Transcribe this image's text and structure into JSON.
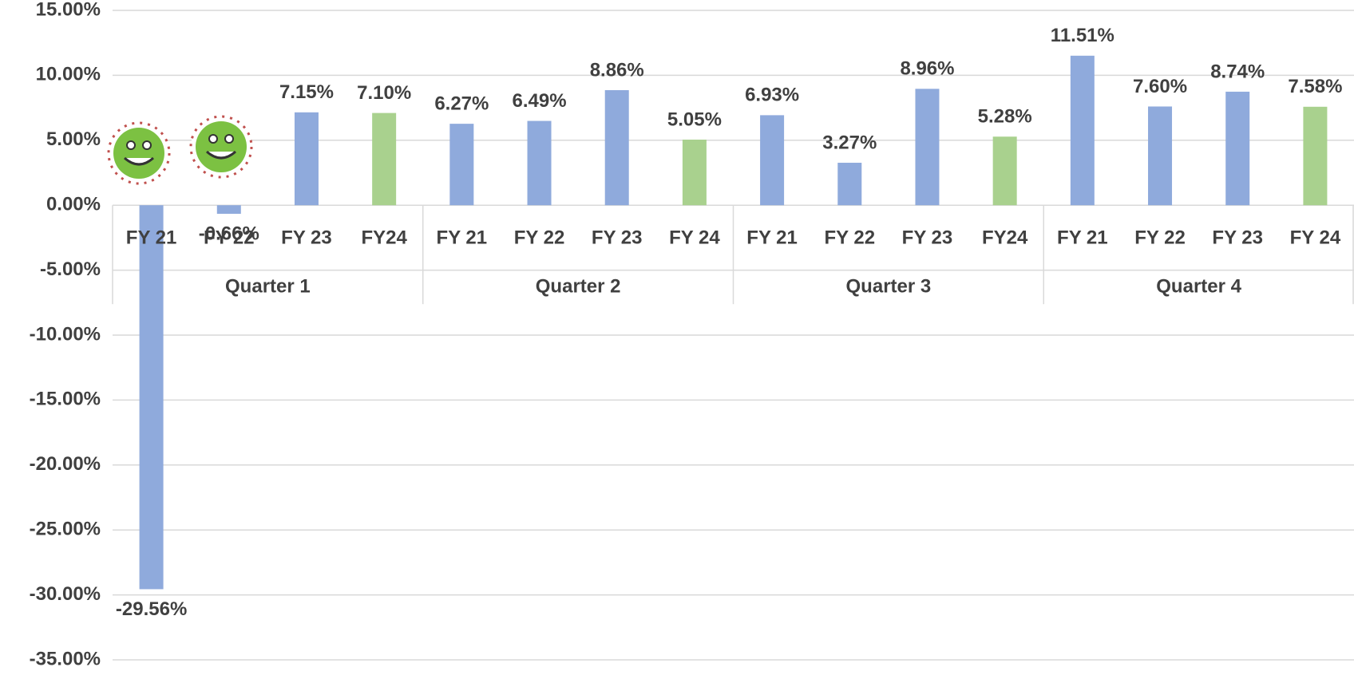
{
  "chart_data": {
    "type": "bar",
    "categories": [
      "FY 21",
      "FY 22",
      "FY 23",
      "FY24",
      "FY 21",
      "FY 22",
      "FY 23",
      "FY 24",
      "FY 21",
      "FY 22",
      "FY 23",
      "FY24",
      "FY 21",
      "FY 22",
      "FY 23",
      "FY 24"
    ],
    "groups": [
      "Quarter 1",
      "Quarter 2",
      "Quarter 3",
      "Quarter 4"
    ],
    "values": [
      -29.56,
      -0.66,
      7.15,
      7.1,
      6.27,
      6.49,
      8.86,
      5.05,
      6.93,
      3.27,
      8.96,
      5.28,
      11.51,
      7.6,
      8.74,
      7.58
    ],
    "value_labels": [
      "-29.56%",
      "-0.66%",
      "7.15%",
      "7.10%",
      "6.27%",
      "6.49%",
      "8.86%",
      "5.05%",
      "6.93%",
      "3.27%",
      "8.96%",
      "5.28%",
      "11.51%",
      "7.60%",
      "8.74%",
      "7.58%"
    ],
    "colors": [
      "#8faadc",
      "#8faadc",
      "#8faadc",
      "#a9d18e",
      "#8faadc",
      "#8faadc",
      "#8faadc",
      "#a9d18e",
      "#8faadc",
      "#8faadc",
      "#8faadc",
      "#a9d18e",
      "#8faadc",
      "#8faadc",
      "#8faadc",
      "#a9d18e"
    ],
    "ylim": [
      -35,
      15
    ],
    "yticks": [
      {
        "value": -35,
        "label": "-35.00%"
      },
      {
        "value": -30,
        "label": "-30.00%"
      },
      {
        "value": -25,
        "label": "-25.00%"
      },
      {
        "value": -20,
        "label": "-20.00%"
      },
      {
        "value": -15,
        "label": "-15.00%"
      },
      {
        "value": -10,
        "label": "-10.00%"
      },
      {
        "value": -5,
        "label": "-5.00%"
      },
      {
        "value": 0,
        "label": "0.00%"
      },
      {
        "value": 5,
        "label": "5.00%"
      },
      {
        "value": 10,
        "label": "10.00%"
      },
      {
        "value": 15,
        "label": "15.00%"
      }
    ],
    "grid": true
  }
}
